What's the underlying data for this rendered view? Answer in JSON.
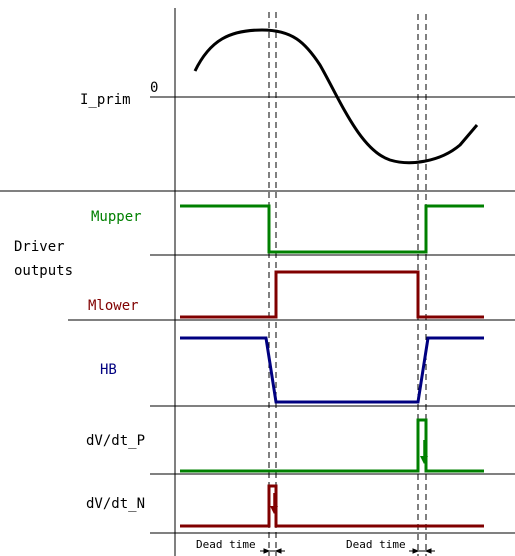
{
  "labels": {
    "i_prim": "I_prim",
    "zero": "0",
    "mupper": "Mupper",
    "driver_line1": "Driver",
    "driver_line2": "outputs",
    "mlower": "Mlower",
    "hb": "HB",
    "dvdt_p": "dV/dt_P",
    "dvdt_n": "dV/dt_N",
    "dead_time_1": "Dead time",
    "dead_time_2": "Dead time"
  },
  "colors": {
    "mupper": "#008000",
    "mlower": "#800000",
    "hb": "#000080",
    "dvdt_p": "#008000",
    "dvdt_n": "#800000",
    "axis": "#000000",
    "dashed": "#000000"
  }
}
